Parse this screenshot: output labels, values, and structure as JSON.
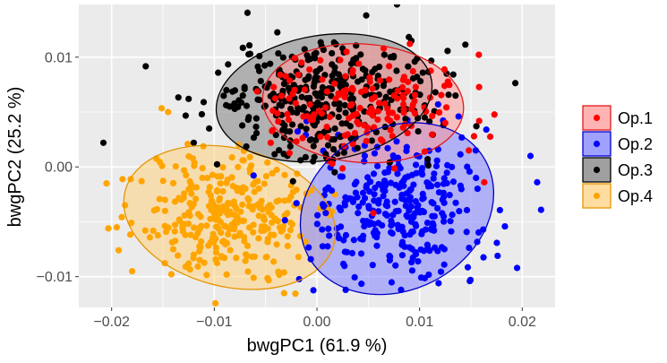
{
  "chart_data": {
    "type": "scatter",
    "title": "",
    "xlabel": "bwgPC1 (61.9 %)",
    "ylabel": "bwgPC2 (25.2 %)",
    "xlim": [
      -0.0232,
      0.0232
    ],
    "ylim": [
      -0.0128,
      0.0148
    ],
    "x_ticks": [
      -0.02,
      -0.01,
      0.0,
      0.01,
      0.02
    ],
    "x_tick_labels": [
      "−0.02",
      "−0.01",
      "0.00",
      "0.01",
      "0.02"
    ],
    "y_ticks": [
      -0.01,
      0.0,
      0.01
    ],
    "y_tick_labels": [
      "−0.01",
      "0.00",
      "0.01"
    ],
    "grid": true,
    "legend_position": "right",
    "background": "#ebebeb",
    "series": [
      {
        "name": "Op.1",
        "color": "#ff0000",
        "fill": "#ff9999",
        "edge": "#e31a1c",
        "n_points": 150,
        "center": [
          0.0045,
          0.0057
        ],
        "spread": [
          0.0045,
          0.0022
        ],
        "ellipse": {
          "cx": 0.0045,
          "cy": 0.0058,
          "rx": 0.0098,
          "ry": 0.0054,
          "angle_deg": -4
        },
        "sample_points": [
          [
            -0.0015,
            0.0095
          ],
          [
            0.0035,
            0.0088
          ],
          [
            0.0075,
            0.0065
          ],
          [
            0.0095,
            0.006
          ],
          [
            0.0125,
            0.004
          ],
          [
            -0.0045,
            0.0022
          ],
          [
            0.0015,
            0.0003
          ],
          [
            0.0065,
            0.0108
          ],
          [
            0.0105,
            0.0014
          ],
          [
            0.0055,
            -0.0042
          ],
          [
            0.0085,
            0.0082
          ],
          [
            0.0002,
            0.0051
          ],
          [
            0.0148,
            0.0015
          ],
          [
            0.0163,
            -0.0014
          ]
        ]
      },
      {
        "name": "Op.2",
        "color": "#0000ff",
        "fill": "#8080ff",
        "edge": "#0000cc",
        "n_points": 300,
        "center": [
          0.0078,
          -0.0037
        ],
        "spread": [
          0.0042,
          0.0032
        ],
        "ellipse": {
          "cx": 0.0078,
          "cy": -0.0038,
          "rx": 0.0098,
          "ry": 0.0074,
          "angle_deg": 28
        },
        "sample_points": [
          [
            0.0195,
            -0.0092
          ],
          [
            0.0208,
            0.001
          ],
          [
            0.0176,
            -0.0081
          ],
          [
            0.0162,
            -0.0057
          ],
          [
            0.0124,
            -0.0089
          ],
          [
            0.0082,
            -0.0112
          ],
          [
            0.0028,
            -0.0112
          ],
          [
            0.0165,
            0.0034
          ],
          [
            0.0118,
            0.0057
          ],
          [
            0.0005,
            -0.0057
          ],
          [
            0.0138,
            0.0046
          ],
          [
            0.0155,
            -0.001
          ],
          [
            0.0071,
            -0.0085
          ],
          [
            0.0046,
            0.0005
          ]
        ]
      },
      {
        "name": "Op.3",
        "color": "#000000",
        "fill": "#7f7f7f",
        "edge": "#000000",
        "n_points": 350,
        "center": [
          0.0006,
          0.0062
        ],
        "spread": [
          0.0055,
          0.0025
        ],
        "ellipse": {
          "cx": 0.0007,
          "cy": 0.0063,
          "rx": 0.0106,
          "ry": 0.0057,
          "angle_deg": 9
        },
        "sample_points": [
          [
            -0.0208,
            0.0022
          ],
          [
            -0.0125,
            0.0062
          ],
          [
            0.0078,
            0.0148
          ],
          [
            0.0048,
            0.0138
          ],
          [
            0.0025,
            0.0108
          ],
          [
            -0.0065,
            0.0103
          ],
          [
            -0.0105,
            0.0035
          ],
          [
            -0.012,
            0.0022
          ],
          [
            0.0092,
            0.0115
          ],
          [
            0.0135,
            0.0065
          ],
          [
            -0.0035,
            0.0085
          ],
          [
            0.0055,
            0.0035
          ],
          [
            -0.0085,
            0.0055
          ],
          [
            0.0105,
            0.0045
          ]
        ]
      },
      {
        "name": "Op.4",
        "color": "#ffa500",
        "fill": "#ffd280",
        "edge": "#e69500",
        "n_points": 300,
        "center": [
          -0.0085,
          -0.0045
        ],
        "spread": [
          0.0043,
          0.0028
        ],
        "ellipse": {
          "cx": -0.0085,
          "cy": -0.0046,
          "rx": 0.0105,
          "ry": 0.0063,
          "angle_deg": -14
        },
        "sample_points": [
          [
            -0.0205,
            -0.0015
          ],
          [
            -0.0195,
            -0.0055
          ],
          [
            -0.018,
            -0.0095
          ],
          [
            -0.0145,
            0.005
          ],
          [
            -0.014,
            -0.0075
          ],
          [
            -0.0125,
            -0.0088
          ],
          [
            -0.0088,
            -0.0098
          ],
          [
            -0.0032,
            -0.0115
          ],
          [
            -0.0065,
            -0.0005
          ],
          [
            -0.0042,
            -0.0062
          ],
          [
            -0.0018,
            -0.0082
          ],
          [
            -0.01,
            -0.0042
          ],
          [
            -0.0148,
            -0.003
          ],
          [
            -0.0022,
            -0.0035
          ]
        ]
      }
    ]
  }
}
